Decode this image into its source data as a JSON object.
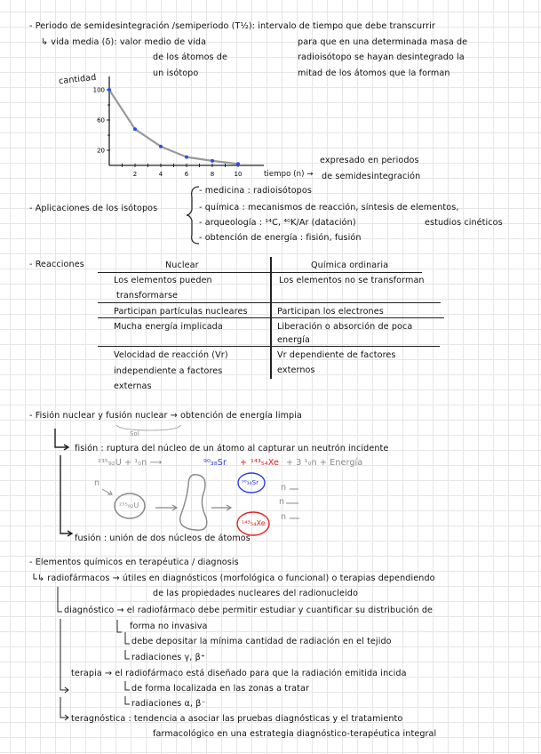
{
  "half_life": {
    "line1": "- Periodo de semidesintegración /semiperiodo (T½): intervalo de tiempo que debe transcurrir",
    "mean_life": "↳ vida media (δ): valor medio de vida",
    "mean_life_2": "de los átomos de",
    "mean_life_3": "un isótopo",
    "def_2": "para que en una determinada masa de",
    "def_3": "radioisótopo se hayan desintegrado la",
    "def_4": "mitad de los átomos que la forman",
    "x_note_1": "expresado en periodos",
    "x_note_2": "de semidesintegración"
  },
  "chart_data": {
    "type": "line",
    "ylabel": "cantidad",
    "xlabel": "tiempo (n) →",
    "x": [
      0,
      2,
      4,
      6,
      8,
      10
    ],
    "y": [
      100,
      48,
      25,
      11,
      6,
      2
    ],
    "x_ticks": [
      "2",
      "4",
      "6",
      "8",
      "10"
    ],
    "y_ticks": [
      "100",
      "60",
      "20"
    ],
    "ylim": [
      0,
      110
    ],
    "xlim": [
      0,
      12
    ],
    "line_color": "#999999",
    "point_color": "#2a4fe8"
  },
  "applications": {
    "title": "- Aplicaciones de los isótopos",
    "items": [
      "- medicina : radioisótopos",
      "- química : mecanismos de reacción, síntesis de elementos,",
      "- arqueología : ¹⁴C, ⁴⁰K/Ar (datación)",
      "- obtención de energía : fisión, fusión"
    ],
    "extra": "estudios cinéticos"
  },
  "reactions": {
    "title": "- Reacciones",
    "headers": [
      "Nuclear",
      "Química ordinaria"
    ],
    "rows": [
      [
        "Los elementos pueden",
        "transformarse",
        "Los elementos no se transforman"
      ],
      [
        "Participan partículas nucleares",
        "Participan los electrones"
      ],
      [
        "Mucha energía implicada",
        "Liberación o absorción de poca",
        "energía"
      ],
      [
        "Velocidad de reacción (Vr)",
        "independiente a factores",
        "externas",
        "Vr dependiente de factores",
        "externos"
      ]
    ]
  },
  "fission": {
    "title": "- Fisión nuclear y fusión nuclear → obtención de energía limpia",
    "sun_note": "Sol",
    "fission_def": "fisión : ruptura del núcleo de un átomo al capturar un neutrón incidente",
    "eq_reactants": "²³⁵₉₂U + ¹₀n ⟶",
    "eq_sr": "⁹⁰₃₈Sr",
    "eq_plus": "+",
    "eq_xe": "¹⁴³₅₄Xe",
    "eq_rest": "+ 3 ¹₀n + Energía",
    "diagram_n": "n",
    "diagram_u": "²³⁵₉₂U",
    "diagram_sr": "⁹⁰₃₈Sr",
    "diagram_xe": "¹⁴³₅₄Xe",
    "fusion_def": "fusión : unión de dos núcleos de átomos"
  },
  "elements": {
    "title": "- Elementos químicos en terapéutica / diagnosis",
    "radio_1": "↳ radiofármacos → útiles en diagnósticos (morfológica o funcional) o terapias dependiendo",
    "radio_2": "de las propiedades nucleares del radionucleido",
    "diag_1": "diagnóstico → el radiofármaco debe permitir estudiar y cuantificar su distribución de",
    "diag_2": "forma no invasiva",
    "diag_3": "debe depositar la mínima cantidad de radiación en el tejido",
    "diag_4": "radiaciones γ, β⁺",
    "ter_1": "terapia → el radiofármaco está diseñado para que la radiación emitida incida",
    "ter_2": "de forma localizada en las zonas a tratar",
    "ter_3": "radiaciones α, β⁻",
    "tera_1": "teragnóstica : tendencia a asociar las pruebas diagnósticas y el tratamiento",
    "tera_2": "farmacológico en una estrategia diagnóstico-terapéutica integral"
  }
}
